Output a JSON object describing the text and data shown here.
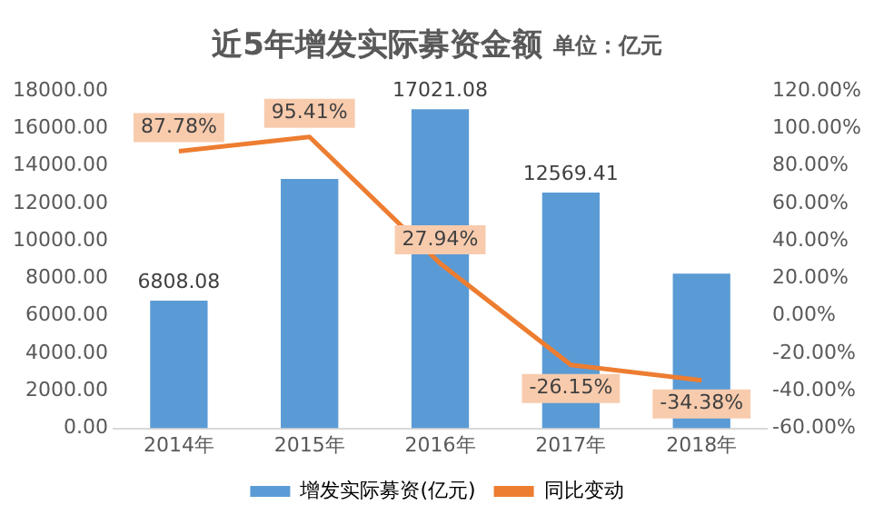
{
  "chart_data": {
    "type": "bar",
    "title": "近5年增发实际募资金额",
    "subtitle": "单位：亿元",
    "categories": [
      "2014年",
      "2015年",
      "2016年",
      "2017年",
      "2018年"
    ],
    "series": [
      {
        "name": "增发实际募资(亿元)",
        "color": "#5b9bd5",
        "values": [
          6808.08,
          13300,
          17021.08,
          12569.41,
          8250
        ],
        "value_labels": [
          "6808.08",
          null,
          "17021.08",
          "12569.41",
          null
        ]
      },
      {
        "name": "同比变动",
        "type": "line",
        "axis": "y2",
        "color": "#ed7d31",
        "marker": "none",
        "values": [
          87.78,
          95.41,
          27.94,
          -26.15,
          -34.38
        ],
        "value_labels": [
          "87.78%",
          "95.41%",
          "27.94%",
          "-26.15%",
          "-34.38%"
        ]
      }
    ],
    "ylim": [
      0,
      18000
    ],
    "yticks": [
      {
        "value": 0,
        "label": "0.00"
      },
      {
        "value": 2000,
        "label": "2000.00"
      },
      {
        "value": 4000,
        "label": "4000.00"
      },
      {
        "value": 6000,
        "label": "6000.00"
      },
      {
        "value": 8000,
        "label": "8000.00"
      },
      {
        "value": 10000,
        "label": "10000.00"
      },
      {
        "value": 12000,
        "label": "12000.00"
      },
      {
        "value": 14000,
        "label": "14000.00"
      },
      {
        "value": 16000,
        "label": "16000.00"
      },
      {
        "value": 18000,
        "label": "18000.00"
      }
    ],
    "y2lim": [
      -60,
      120
    ],
    "y2ticks": [
      {
        "value": -60,
        "label": "-60.00%"
      },
      {
        "value": -40,
        "label": "-40.00%"
      },
      {
        "value": -20,
        "label": "-20.00%"
      },
      {
        "value": 0,
        "label": "0.00%"
      },
      {
        "value": 20,
        "label": "20.00%"
      },
      {
        "value": 40,
        "label": "40.00%"
      },
      {
        "value": 60,
        "label": "60.00%"
      },
      {
        "value": 80,
        "label": "80.00%"
      },
      {
        "value": 100,
        "label": "100.00%"
      },
      {
        "value": 120,
        "label": "120.00%"
      }
    ],
    "grid": false,
    "legend": "bottom"
  }
}
